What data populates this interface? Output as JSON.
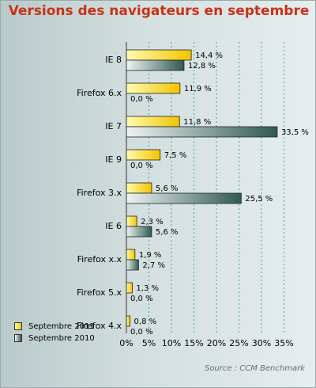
{
  "colors": {
    "series_2011_light": "#fffbb0",
    "series_2011_dark": "#f2c400",
    "series_2010_light": "#eef3f3",
    "series_2010_dark": "#2f5a4f",
    "title": "#c8321a",
    "gridline": "#3ca3b8"
  },
  "chart_data": {
    "type": "bar",
    "orientation": "horizontal",
    "title": "Versions des navigateurs en septembre",
    "categories": [
      "IE 8",
      "Firefox 6.x",
      "IE 7",
      "IE 9",
      "Firefox 3.x",
      "IE 6",
      "Firefox x.x",
      "Firefox 5.x",
      "Firefox 4.x"
    ],
    "series": [
      {
        "name": "Septembre 2011",
        "values": [
          14.4,
          11.9,
          11.8,
          7.5,
          5.6,
          2.3,
          1.9,
          1.3,
          0.8
        ],
        "labels": [
          "14,4 %",
          "11,9 %",
          "11,8 %",
          "7,5 %",
          "5,6 %",
          "2,3 %",
          "1,9 %",
          "1,3 %",
          "0,8 %"
        ]
      },
      {
        "name": "Septembre 2010",
        "values": [
          12.8,
          0.0,
          33.5,
          0.0,
          25.5,
          5.6,
          2.7,
          0.0,
          0.0
        ],
        "labels": [
          "12,8 %",
          "0,0 %",
          "33,5 %",
          "0,0 %",
          "25,5 %",
          "5,6 %",
          "2,7 %",
          "0,0 %",
          "0,0 %"
        ]
      }
    ],
    "xlim": [
      0,
      35
    ],
    "xticks": [
      0,
      5,
      10,
      15,
      20,
      25,
      30,
      35
    ],
    "xtick_labels": [
      "0%",
      "5%",
      "10%",
      "15%",
      "20%",
      "25%",
      "30%",
      "35%"
    ],
    "grid": "vertical dotted",
    "legend_position": "bottom-left",
    "source": "Source : CCM Benchmark"
  }
}
